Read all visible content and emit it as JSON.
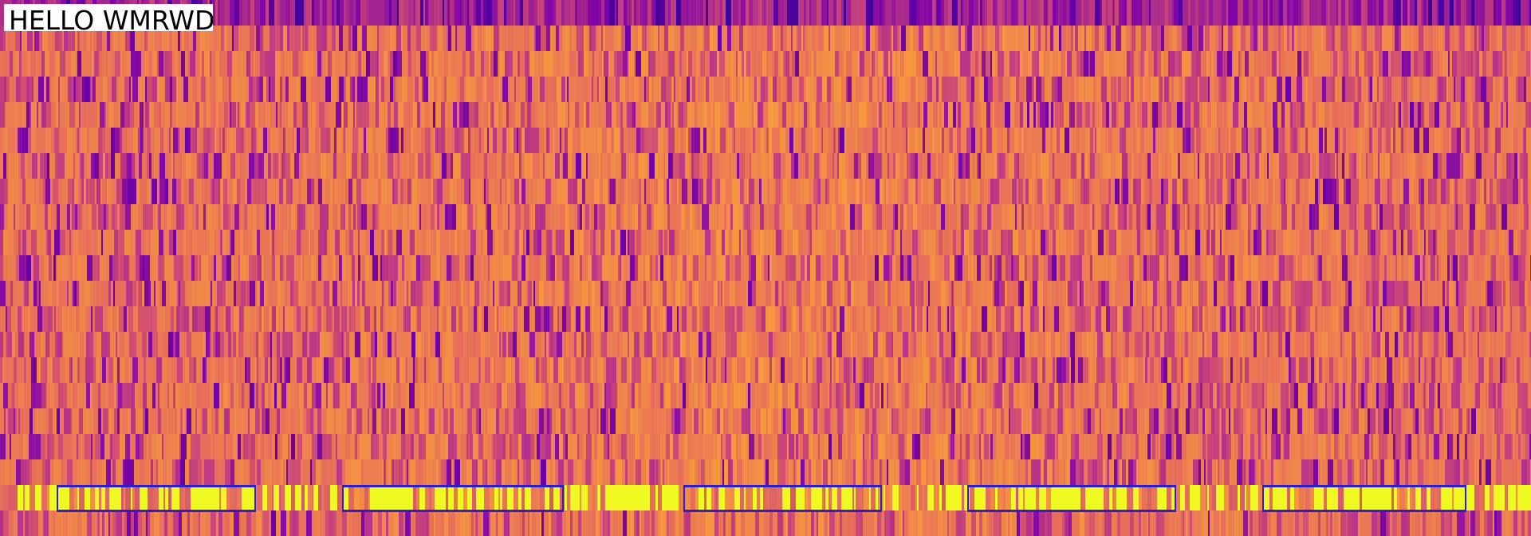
{
  "title": "HELLO WMRWD"
}
